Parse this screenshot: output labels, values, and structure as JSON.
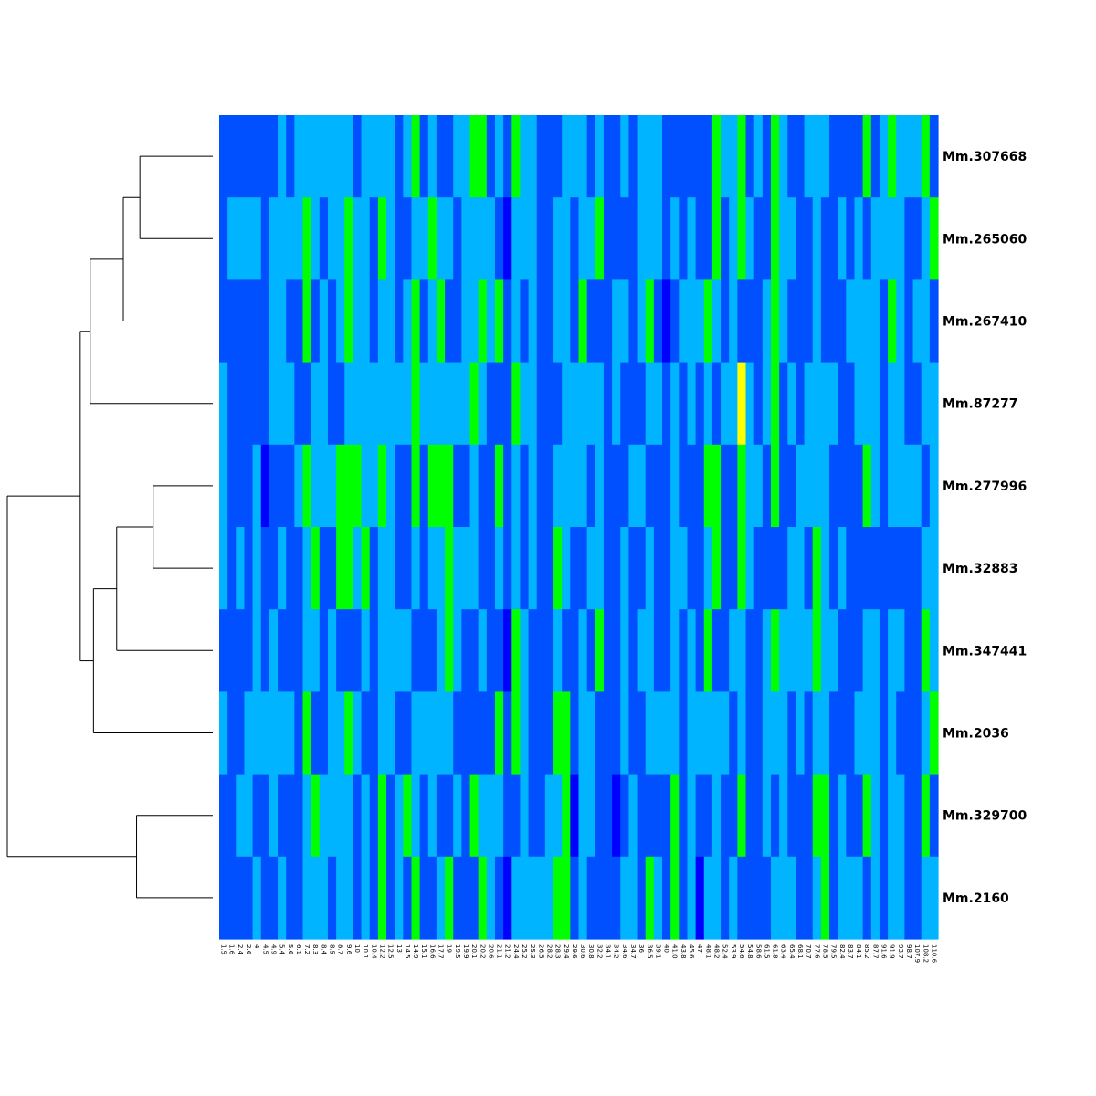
{
  "chart_data": {
    "type": "heatmap",
    "title": "",
    "xlabel": "",
    "ylabel": "",
    "rows": [
      "Mm.307668",
      "Mm.265060",
      "Mm.267410",
      "Mm.87277",
      "Mm.277996",
      "Mm.32883",
      "Mm.347441",
      "Mm.2036",
      "Mm.329700",
      "Mm.2160"
    ],
    "columns": [
      "1.5",
      "1.6",
      "2.4",
      "2.6",
      "4",
      "4.5",
      "4.9",
      "5.4",
      "5.6",
      "6.1",
      "7.2",
      "8.3",
      "8.4",
      "8.5",
      "8.7",
      "9.6",
      "10",
      "10.1",
      "10.4",
      "12.2",
      "12.5",
      "13",
      "14.5",
      "14.9",
      "15.1",
      "16.6",
      "17.7",
      "19",
      "19.5",
      "19.9",
      "20.1",
      "20.2",
      "20.6",
      "21.1",
      "21.2",
      "24.4",
      "25.2",
      "25.3",
      "26.5",
      "28.2",
      "28.3",
      "29.4",
      "29.6",
      "30.6",
      "30.8",
      "32.2",
      "34.1",
      "34.2",
      "34.6",
      "34.7",
      "36",
      "36.5",
      "39.1",
      "40",
      "41.0",
      "43.8",
      "45.6",
      "47",
      "48.1",
      "48.2",
      "52.4",
      "53.9",
      "54.6",
      "54.8",
      "58.6",
      "61.5",
      "61.8",
      "63.4",
      "65.4",
      "68.1",
      "70.7",
      "77.6",
      "78.5",
      "79.5",
      "82.4",
      "83.7",
      "84.1",
      "85.2",
      "87.7",
      "91.6",
      "91.9",
      "93.7",
      "98.7",
      "107.9",
      "108.2",
      "110.6"
    ],
    "colorscale": [
      "#0000ff",
      "#0050ff",
      "#00b4ff",
      "#00ff00",
      "#ffff00",
      "#ffc8a0"
    ],
    "column_dendrogram": false,
    "dendrogram": {
      "leaf_order": [
        "Mm.307668",
        "Mm.265060",
        "Mm.267410",
        "Mm.87277",
        "Mm.277996",
        "Mm.32883",
        "Mm.347441",
        "Mm.2036",
        "Mm.329700",
        "Mm.2160"
      ],
      "merges": [
        {
          "id": "A",
          "children": [
            "Mm.307668",
            "Mm.265060"
          ],
          "height": 0.22
        },
        {
          "id": "B",
          "children": [
            "A",
            "Mm.267410"
          ],
          "height": 0.27
        },
        {
          "id": "C",
          "children": [
            "B",
            "Mm.87277"
          ],
          "height": 0.37
        },
        {
          "id": "D",
          "children": [
            "Mm.277996",
            "Mm.32883"
          ],
          "height": 0.18
        },
        {
          "id": "E",
          "children": [
            "D",
            "Mm.347441"
          ],
          "height": 0.29
        },
        {
          "id": "F",
          "children": [
            "E",
            "Mm.2036"
          ],
          "height": 0.36
        },
        {
          "id": "G",
          "children": [
            "C",
            "F"
          ],
          "height": 0.4
        },
        {
          "id": "H",
          "children": [
            "Mm.329700",
            "Mm.2160"
          ],
          "height": 0.23
        },
        {
          "id": "I",
          "children": [
            "G",
            "H"
          ],
          "height": 0.62
        }
      ]
    }
  }
}
